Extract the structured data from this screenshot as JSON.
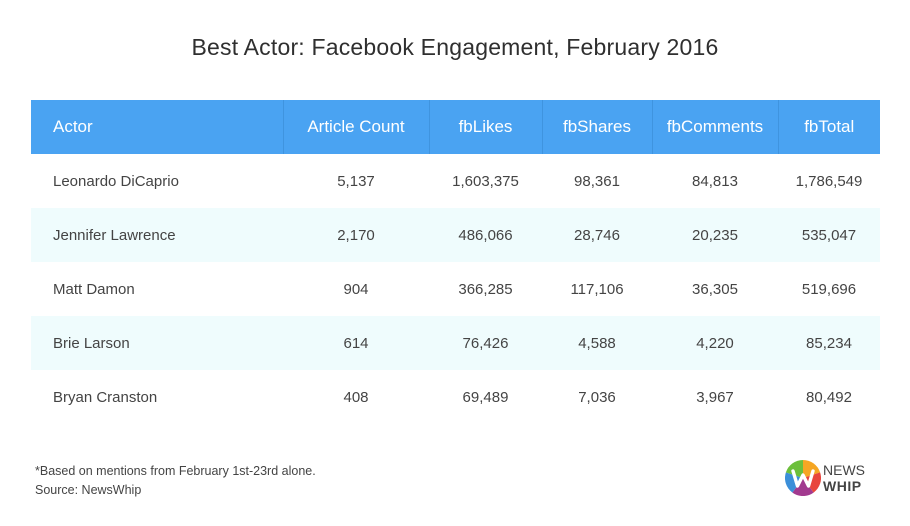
{
  "title": "Best Actor: Facebook Engagement, February 2016",
  "chart_data": {
    "type": "table",
    "title": "Best Actor: Facebook Engagement, February 2016",
    "columns": [
      "Actor",
      "Article Count",
      "fbLikes",
      "fbShares",
      "fbComments",
      "fbTotal"
    ],
    "rows": [
      [
        "Leonardo DiCaprio",
        "5,137",
        "1,603,375",
        "98,361",
        "84,813",
        "1,786,549"
      ],
      [
        "Jennifer Lawrence",
        "2,170",
        "486,066",
        "28,746",
        "20,235",
        "535,047"
      ],
      [
        "Matt Damon",
        "904",
        "366,285",
        "117,106",
        "36,305",
        "519,696"
      ],
      [
        "Brie Larson",
        "614",
        "76,426",
        "4,588",
        "4,220",
        "85,234"
      ],
      [
        "Bryan Cranston",
        "408",
        "69,489",
        "7,036",
        "3,967",
        "80,492"
      ]
    ],
    "header_color": "#4aa3f2",
    "alt_row_color": "#effcfd"
  },
  "footnote": {
    "line1": "*Based on mentions from February 1st-23rd alone.",
    "line2": "Source: NewsWhip"
  },
  "logo": {
    "line1": "NEWS",
    "line2": "WHIP",
    "icon": "newswhip-logo-icon"
  }
}
